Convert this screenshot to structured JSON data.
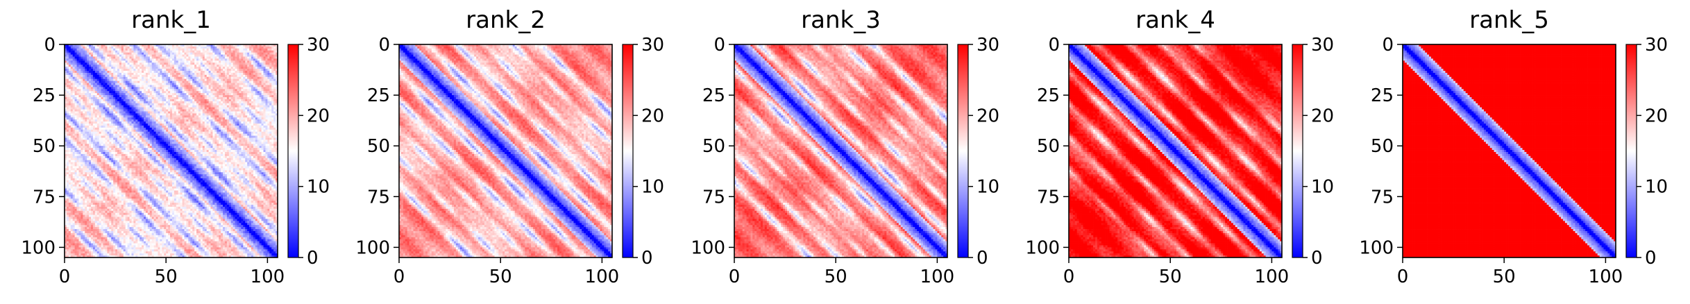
{
  "chart_data": [
    {
      "type": "heatmap",
      "title": "rank_1",
      "xticks": [
        0,
        50,
        100
      ],
      "yticks": [
        0,
        25,
        50,
        75,
        100
      ],
      "colorbar": {
        "ticks": [
          0,
          10,
          20,
          30
        ],
        "range": [
          0,
          30
        ],
        "colormap": "bwr"
      },
      "xlim": [
        0,
        105
      ],
      "ylim": [
        105,
        0
      ],
      "n": 105,
      "pattern": "diagonal distance map, many blue off-diagonal bands"
    },
    {
      "type": "heatmap",
      "title": "rank_2",
      "xticks": [
        0,
        50,
        100
      ],
      "yticks": [
        0,
        25,
        50,
        75,
        100
      ],
      "colorbar": {
        "ticks": [
          0,
          10,
          20,
          30
        ],
        "range": [
          0,
          30
        ],
        "colormap": "bwr"
      },
      "xlim": [
        0,
        105
      ],
      "ylim": [
        105,
        0
      ],
      "n": 105,
      "pattern": "diagonal distance map, parallel blue bands"
    },
    {
      "type": "heatmap",
      "title": "rank_3",
      "xticks": [
        0,
        50,
        100
      ],
      "yticks": [
        0,
        25,
        50,
        75,
        100
      ],
      "colorbar": {
        "ticks": [
          0,
          10,
          20,
          30
        ],
        "range": [
          0,
          30
        ],
        "colormap": "bwr"
      },
      "xlim": [
        0,
        105
      ],
      "ylim": [
        105,
        0
      ],
      "n": 105,
      "pattern": "diagonal distance map, parallel blue bands"
    },
    {
      "type": "heatmap",
      "title": "rank_4",
      "xticks": [
        0,
        50,
        100
      ],
      "yticks": [
        0,
        25,
        50,
        75,
        100
      ],
      "colorbar": {
        "ticks": [
          0,
          10,
          20,
          30
        ],
        "range": [
          0,
          30
        ],
        "colormap": "bwr"
      },
      "xlim": [
        0,
        105
      ],
      "ylim": [
        105,
        0
      ],
      "n": 105,
      "pattern": "diagonal distance map, fewer bands, mostly red"
    },
    {
      "type": "heatmap",
      "title": "rank_5",
      "xticks": [
        0,
        50,
        100
      ],
      "yticks": [
        0,
        25,
        50,
        75,
        100
      ],
      "colorbar": {
        "ticks": [
          0,
          10,
          20,
          30
        ],
        "range": [
          0,
          30
        ],
        "colormap": "bwr"
      },
      "xlim": [
        0,
        105
      ],
      "ylim": [
        105,
        0
      ],
      "n": 105,
      "pattern": "single blue diagonal, strongly red off-diagonal"
    }
  ]
}
